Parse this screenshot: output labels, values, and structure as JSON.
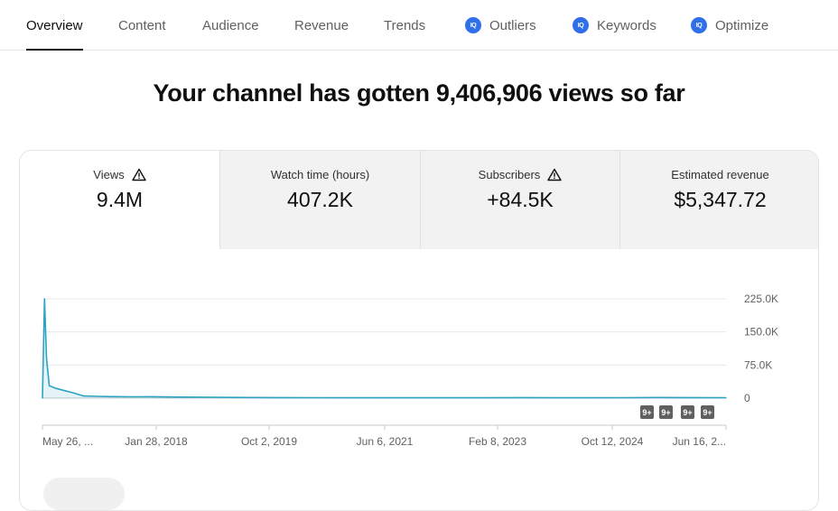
{
  "tabs": [
    {
      "label": "Overview",
      "active": true,
      "vidiq": false
    },
    {
      "label": "Content",
      "active": false,
      "vidiq": false
    },
    {
      "label": "Audience",
      "active": false,
      "vidiq": false
    },
    {
      "label": "Revenue",
      "active": false,
      "vidiq": false
    },
    {
      "label": "Trends",
      "active": false,
      "vidiq": false
    },
    {
      "label": "Outliers",
      "active": false,
      "vidiq": true
    },
    {
      "label": "Keywords",
      "active": false,
      "vidiq": true
    },
    {
      "label": "Optimize",
      "active": false,
      "vidiq": true
    }
  ],
  "vidiq_badge": "IQ",
  "headline": "Your channel has gotten 9,406,906 views so far",
  "metrics": [
    {
      "label": "Views",
      "value": "9.4M",
      "warning": true,
      "selected": true
    },
    {
      "label": "Watch time (hours)",
      "value": "407.2K",
      "warning": false,
      "selected": false
    },
    {
      "label": "Subscribers",
      "value": "+84.5K",
      "warning": true,
      "selected": false
    },
    {
      "label": "Estimated revenue",
      "value": "$5,347.72",
      "warning": false,
      "selected": false
    }
  ],
  "chart_data": {
    "type": "line",
    "series": [
      {
        "color": "#2ba3c4",
        "points": [
          [
            0.0,
            0
          ],
          [
            0.003,
            225000
          ],
          [
            0.006,
            90000
          ],
          [
            0.01,
            28000
          ],
          [
            0.02,
            22000
          ],
          [
            0.03,
            18000
          ],
          [
            0.045,
            12000
          ],
          [
            0.06,
            5000
          ],
          [
            0.08,
            4000
          ],
          [
            0.1,
            3500
          ],
          [
            0.13,
            3000
          ],
          [
            0.16,
            3200
          ],
          [
            0.2,
            2500
          ],
          [
            0.25,
            2000
          ],
          [
            0.3,
            1500
          ],
          [
            0.35,
            1200
          ],
          [
            0.4,
            1000
          ],
          [
            0.45,
            900
          ],
          [
            0.5,
            800
          ],
          [
            0.55,
            900
          ],
          [
            0.6,
            800
          ],
          [
            0.65,
            900
          ],
          [
            0.7,
            1200
          ],
          [
            0.75,
            900
          ],
          [
            0.8,
            800
          ],
          [
            0.85,
            1000
          ],
          [
            0.9,
            1500
          ],
          [
            0.95,
            1200
          ],
          [
            1.0,
            1000
          ]
        ]
      }
    ],
    "x_tick_labels": [
      "May 26, ...",
      "Jan 28, 2018",
      "Oct 2, 2019",
      "Jun 6, 2021",
      "Feb 8, 2023",
      "Oct 12, 2024",
      "Jun 16, 2..."
    ],
    "y_tick_labels": [
      "225.0K",
      "150.0K",
      "75.0K",
      "0"
    ],
    "y_ticks": [
      225000,
      150000,
      75000,
      0
    ],
    "ylim": [
      0,
      225000
    ],
    "grid": true,
    "markers": [
      "9+",
      "9+",
      "9+",
      "9+"
    ]
  },
  "colors": {
    "accent": "#2ba3c4",
    "vidiq_blue": "#2f6fe8",
    "marker_bg": "#606060"
  }
}
